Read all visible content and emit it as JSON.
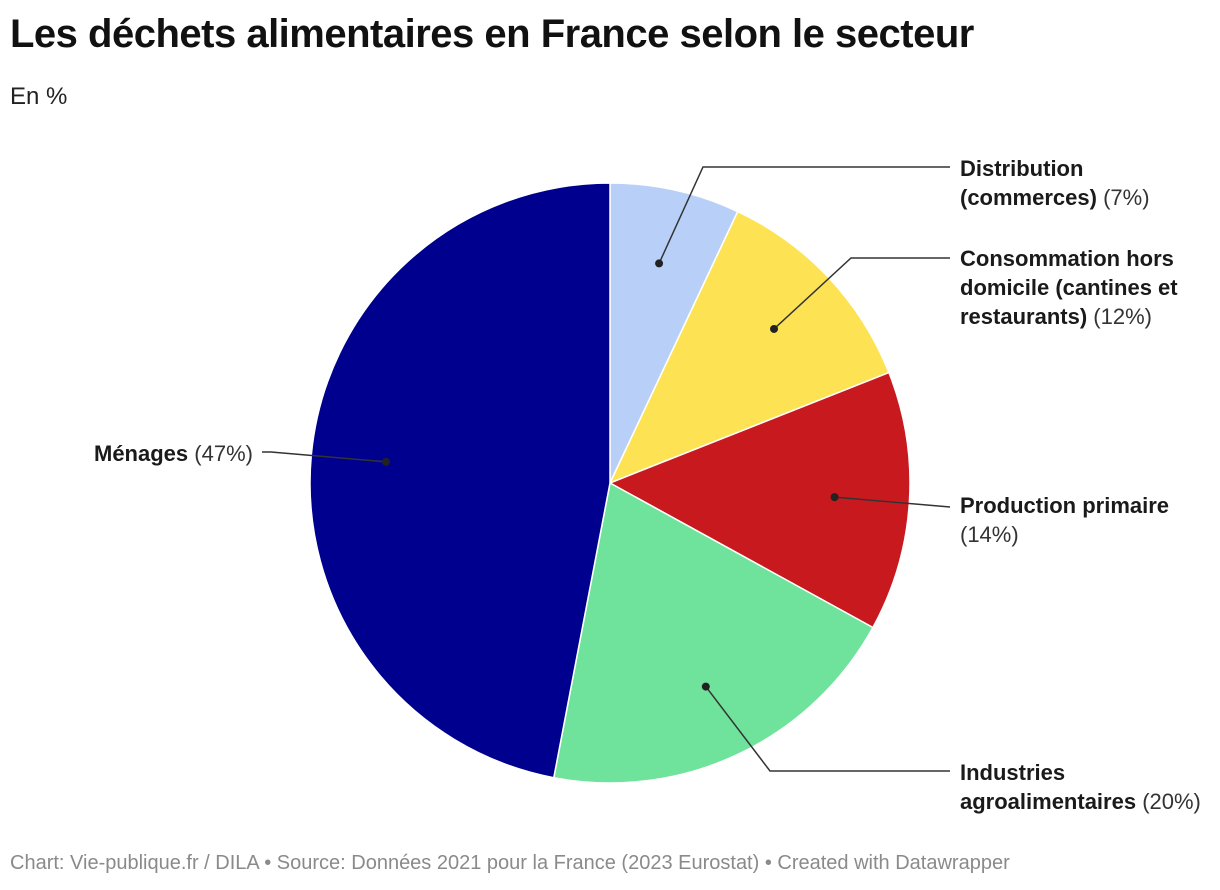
{
  "title": "Les déchets alimentaires en France selon le secteur",
  "subtitle": "En %",
  "footer": "Chart: Vie-publique.fr / DILA • Source: Données 2021 pour la France (2023 Eurostat) • Created with Datawrapper",
  "chart_data": {
    "type": "pie",
    "title": "Les déchets alimentaires en France selon le secteur",
    "unit": "%",
    "slices": [
      {
        "label": "Distribution (commerces)",
        "label_lines": [
          "Distribution",
          "(commerces)"
        ],
        "pct_text": "(7%)",
        "value": 7,
        "color": "#b8d0f8"
      },
      {
        "label": "Consommation hors domicile (cantines et restaurants)",
        "label_lines": [
          "Consommation hors",
          "domicile (cantines et",
          "restaurants)"
        ],
        "pct_text": "(12%)",
        "value": 12,
        "color": "#fde354"
      },
      {
        "label": "Production primaire",
        "label_lines": [
          "Production primaire"
        ],
        "pct_text": "(14%)",
        "pct_newline": true,
        "value": 14,
        "color": "#c8191f"
      },
      {
        "label": "Industries agroalimentaires",
        "label_lines": [
          "Industries",
          "agroalimentaires"
        ],
        "pct_text": "(20%)",
        "value": 20,
        "color": "#6fe39c"
      },
      {
        "label": "Ménages",
        "label_lines": [
          "Ménages"
        ],
        "pct_text": "(47%)",
        "value": 47,
        "color": "#00008e"
      }
    ]
  }
}
